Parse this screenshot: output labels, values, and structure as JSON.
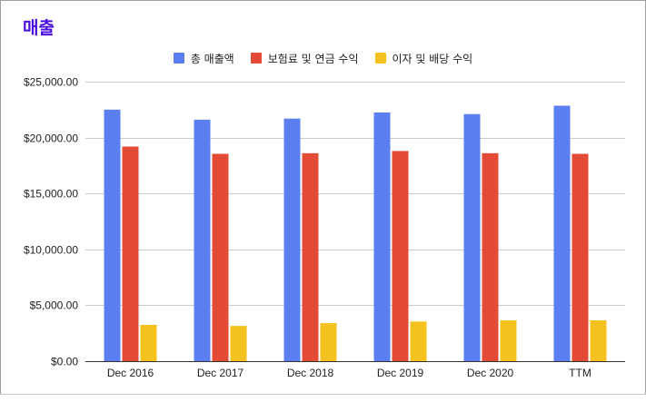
{
  "chart_data": {
    "type": "bar",
    "title": "매출",
    "categories": [
      "Dec 2016",
      "Dec 2017",
      "Dec 2018",
      "Dec 2019",
      "Dec 2020",
      "TTM"
    ],
    "series": [
      {
        "name": "총 매출액",
        "color": "#5b7ff0",
        "values": [
          22500,
          21600,
          21700,
          22250,
          22100,
          22850
        ]
      },
      {
        "name": "보험료 및 연금 수익",
        "color": "#e34b37",
        "values": [
          19200,
          18550,
          18600,
          18800,
          18600,
          18550
        ]
      },
      {
        "name": "이자 및 배당 수익",
        "color": "#f4c11f",
        "values": [
          3250,
          3150,
          3400,
          3550,
          3650,
          3650
        ]
      }
    ],
    "ylim": [
      0,
      25000
    ],
    "yticks": [
      0,
      5000,
      10000,
      15000,
      20000,
      25000
    ],
    "ytick_labels": [
      "$0.00",
      "$5,000.00",
      "$10,000.00",
      "$15,000.00",
      "$20,000.00",
      "$25,000.00"
    ],
    "grid": true,
    "legend_position": "top-center",
    "xlabel": "",
    "ylabel": ""
  }
}
